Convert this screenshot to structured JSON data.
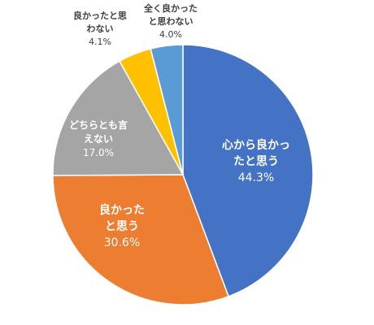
{
  "chart_data": {
    "type": "pie",
    "slices": [
      {
        "label_lines": [
          "心から良かっ",
          "たと思う"
        ],
        "value_text": "44.3%",
        "value": 44.3,
        "color": "#4472C4"
      },
      {
        "label_lines": [
          "良かった",
          "と思う"
        ],
        "value_text": "30.6%",
        "value": 30.6,
        "color": "#ED7D31"
      },
      {
        "label_lines": [
          "どちらとも言",
          "えない"
        ],
        "value_text": "17.0%",
        "value": 17.0,
        "color": "#A5A5A5"
      },
      {
        "label_lines": [
          "良かったと思",
          "わない"
        ],
        "value_text": "4.1%",
        "value": 4.1,
        "color": "#FFC000"
      },
      {
        "label_lines": [
          "全く良かった",
          "と思わない"
        ],
        "value_text": "4.0%",
        "value": 4.0,
        "color": "#5B9BD5"
      }
    ],
    "start_angle_deg": 0,
    "direction": "clockwise"
  }
}
